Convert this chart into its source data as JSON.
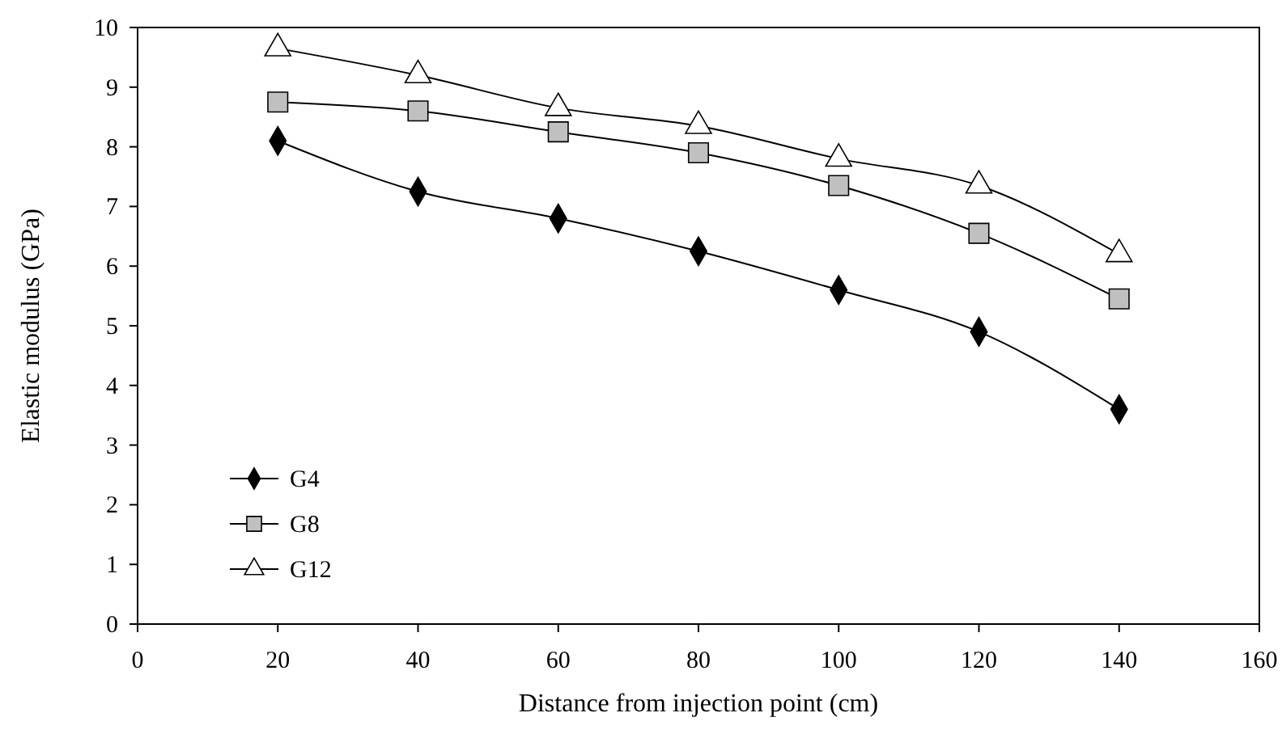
{
  "chart_data": {
    "type": "line",
    "xlabel": "Distance from injection point (cm)",
    "ylabel": "Elastic modulus (GPa)",
    "x": [
      20,
      40,
      60,
      80,
      100,
      120,
      140
    ],
    "xlim": [
      0,
      160
    ],
    "xticks": [
      0,
      20,
      40,
      60,
      80,
      100,
      120,
      140,
      160
    ],
    "ylim": [
      0,
      10
    ],
    "yticks": [
      0,
      1,
      2,
      3,
      4,
      5,
      6,
      7,
      8,
      9,
      10
    ],
    "grid": false,
    "legend": "bottom left",
    "series": [
      {
        "name": "G4",
        "color": "#000000",
        "marker": "diamond",
        "values": [
          8.1,
          7.25,
          6.8,
          6.25,
          5.6,
          4.9,
          3.6
        ]
      },
      {
        "name": "G8",
        "color": "#c0c0c0",
        "marker": "square",
        "values": [
          8.75,
          8.6,
          8.25,
          7.9,
          7.35,
          6.55,
          5.45
        ]
      },
      {
        "name": "G12",
        "color": "#ffffff",
        "marker": "triangle",
        "values": [
          9.65,
          9.2,
          8.65,
          8.35,
          7.8,
          7.35,
          6.2
        ]
      }
    ]
  }
}
